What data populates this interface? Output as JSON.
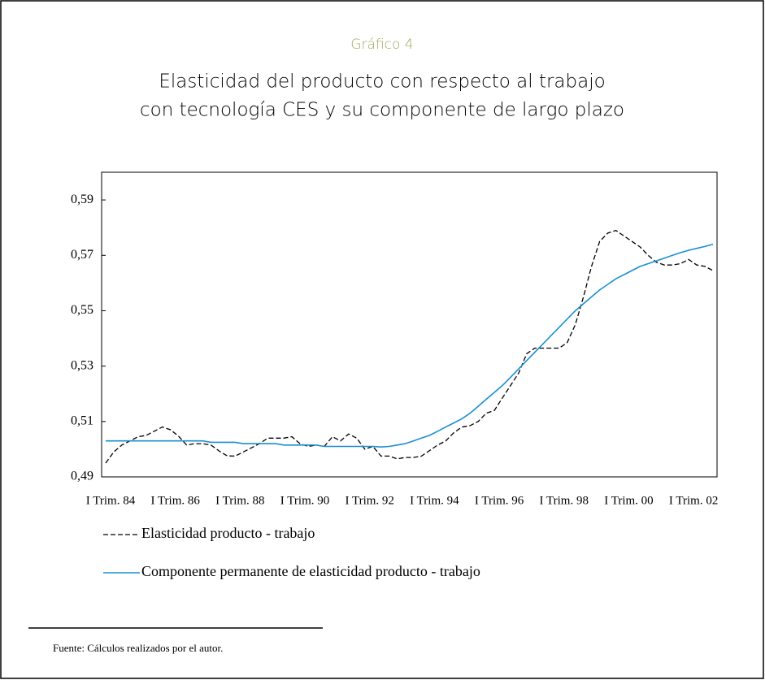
{
  "chart_data": {
    "type": "line",
    "supertitle": "Gráfico 4",
    "title": [
      "Elasticidad del producto con respecto al trabajo",
      "con tecnología CES y su componente de largo plazo"
    ],
    "source": "Fuente: Cálculos realizados por el autor.",
    "categories": [
      "I Trim. 84",
      null,
      null,
      null,
      null,
      null,
      null,
      null,
      "I Trim. 86",
      null,
      null,
      null,
      null,
      null,
      null,
      null,
      "I Trim. 88",
      null,
      null,
      null,
      null,
      null,
      null,
      null,
      "I Trim. 90",
      null,
      null,
      null,
      null,
      null,
      null,
      null,
      "I Trim. 92",
      null,
      null,
      null,
      null,
      null,
      null,
      null,
      "I Trim. 94",
      null,
      null,
      null,
      null,
      null,
      null,
      null,
      "I Trim. 96",
      null,
      null,
      null,
      null,
      null,
      null,
      null,
      "I Trim. 98",
      null,
      null,
      null,
      null,
      null,
      null,
      null,
      "I Trim. 00",
      null,
      null,
      null,
      null,
      null,
      null,
      null,
      "I Trim. 02",
      null,
      null,
      null
    ],
    "series": [
      {
        "name": "Elasticidad producto - trabajo",
        "color": "#000000",
        "dash": true,
        "values": [
          0.495,
          0.499,
          0.5015,
          0.503,
          0.5045,
          0.505,
          0.5065,
          0.508,
          0.507,
          0.5047,
          0.5015,
          0.502,
          0.502,
          0.5015,
          0.4994,
          0.4976,
          0.4975,
          0.499,
          0.5005,
          0.502,
          0.504,
          0.504,
          0.504,
          0.5045,
          0.502,
          0.501,
          0.5015,
          0.501,
          0.5045,
          0.503,
          0.5055,
          0.504,
          0.5,
          0.501,
          0.4975,
          0.4975,
          0.4965,
          0.497,
          0.497,
          0.4975,
          0.4995,
          0.5015,
          0.503,
          0.506,
          0.508,
          0.5085,
          0.51,
          0.513,
          0.514,
          0.5185,
          0.523,
          0.5275,
          0.5345,
          0.5365,
          0.5365,
          0.5365,
          0.5365,
          0.5385,
          0.545,
          0.555,
          0.566,
          0.575,
          0.578,
          0.579,
          0.577,
          0.575,
          0.573,
          0.57,
          0.5675,
          0.5665,
          0.5665,
          0.567,
          0.5685,
          0.5665,
          0.566,
          0.5645
        ]
      },
      {
        "name": "Componente permanente de elasticidad producto - trabajo",
        "color": "#1a8fd0",
        "dash": false,
        "values": [
          0.503,
          0.503,
          0.503,
          0.503,
          0.503,
          0.503,
          0.503,
          0.503,
          0.503,
          0.503,
          0.503,
          0.503,
          0.503,
          0.5025,
          0.5025,
          0.5025,
          0.5025,
          0.502,
          0.502,
          0.502,
          0.502,
          0.502,
          0.5015,
          0.5015,
          0.5015,
          0.5015,
          0.5015,
          0.501,
          0.501,
          0.501,
          0.501,
          0.501,
          0.501,
          0.501,
          0.5008,
          0.501,
          0.5015,
          0.502,
          0.503,
          0.504,
          0.505,
          0.5065,
          0.508,
          0.5095,
          0.511,
          0.513,
          0.5155,
          0.518,
          0.5205,
          0.523,
          0.526,
          0.529,
          0.532,
          0.535,
          0.538,
          0.541,
          0.544,
          0.547,
          0.55,
          0.5525,
          0.555,
          0.5575,
          0.5595,
          0.5615,
          0.563,
          0.5645,
          0.566,
          0.567,
          0.568,
          0.569,
          0.57,
          0.571,
          0.5718,
          0.5725,
          0.5732,
          0.574
        ]
      }
    ],
    "ylim": [
      0.49,
      0.6
    ],
    "yticks": [
      {
        "value": 0.49,
        "label": "0,49"
      },
      {
        "value": 0.51,
        "label": "0,51"
      },
      {
        "value": 0.53,
        "label": "0,53"
      },
      {
        "value": 0.55,
        "label": "0,55"
      },
      {
        "value": 0.57,
        "label": "0,57"
      },
      {
        "value": 0.59,
        "label": "0,59"
      }
    ],
    "grid": false
  }
}
